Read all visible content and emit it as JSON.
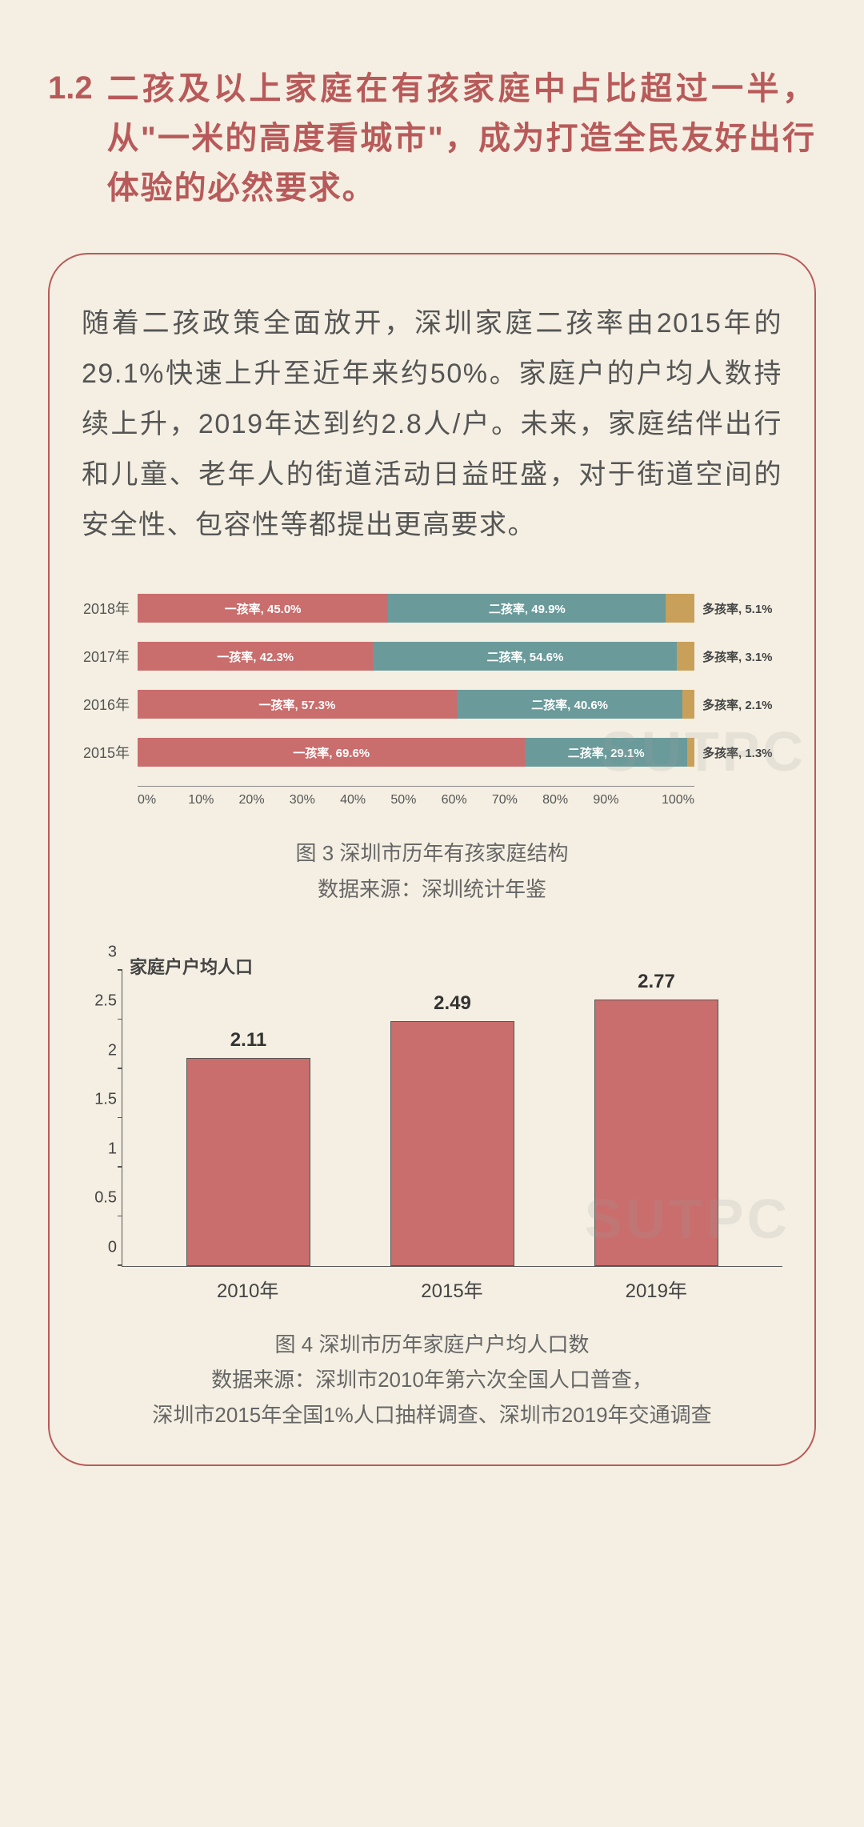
{
  "heading": {
    "number": "1.2",
    "text": "二孩及以上家庭在有孩家庭中占比超过一半，从\"一米的高度看城市\"，成为打造全民友好出行体验的必然要求。",
    "color": "#b85a5a",
    "fontsize": 40
  },
  "paragraph": "随着二孩政策全面放开，深圳家庭二孩率由2015年的29.1%快速上升至近年来约50%。家庭户的户均人数持续上升，2019年达到约2.8人/户。未来，家庭结伴出行和儿童、老年人的街道活动日益旺盛，对于街道空间的安全性、包容性等都提出更高要求。",
  "watermark": "SUTPC",
  "chart1": {
    "type": "stacked-bar-horizontal",
    "caption_title": "图 3  深圳市历年有孩家庭结构",
    "caption_source": "数据来源：深圳统计年鉴",
    "xaxis_ticks": [
      "0%",
      "10%",
      "20%",
      "30%",
      "40%",
      "50%",
      "60%",
      "70%",
      "80%",
      "90%",
      "100%"
    ],
    "series_colors": {
      "one": "#c96d6d",
      "two": "#6a9a9a",
      "multi": "#c9a05a"
    },
    "rows": [
      {
        "year": "2018年",
        "one": {
          "label": "一孩率, 45.0%",
          "val": 45.0
        },
        "two": {
          "label": "二孩率, 49.9%",
          "val": 49.9
        },
        "multi": {
          "label": "多孩率, 5.1%",
          "val": 5.1
        }
      },
      {
        "year": "2017年",
        "one": {
          "label": "一孩率, 42.3%",
          "val": 42.3
        },
        "two": {
          "label": "二孩率, 54.6%",
          "val": 54.6
        },
        "multi": {
          "label": "多孩率, 3.1%",
          "val": 3.1
        }
      },
      {
        "year": "2016年",
        "one": {
          "label": "一孩率, 57.3%",
          "val": 57.3
        },
        "two": {
          "label": "二孩率, 40.6%",
          "val": 40.6
        },
        "multi": {
          "label": "多孩率, 2.1%",
          "val": 2.1
        }
      },
      {
        "year": "2015年",
        "one": {
          "label": "一孩率, 69.6%",
          "val": 69.6
        },
        "two": {
          "label": "二孩率, 29.1%",
          "val": 29.1
        },
        "multi": {
          "label": "多孩率, 1.3%",
          "val": 1.3
        }
      }
    ],
    "label_fontsize": 18,
    "seg_label_fontsize": 15,
    "caption_fontsize": 26
  },
  "chart2": {
    "type": "bar",
    "y_title": "家庭户户均人口",
    "ylim": [
      0,
      3
    ],
    "ytick_step": 0.5,
    "yticks": [
      "0",
      "0.5",
      "1",
      "1.5",
      "2",
      "2.5",
      "3"
    ],
    "bar_color": "#c96d6d",
    "border_color": "#555555",
    "categories": [
      "2010年",
      "2015年",
      "2019年"
    ],
    "values": [
      2.11,
      2.49,
      2.77
    ],
    "value_labels": [
      "2.11",
      "2.49",
      "2.77"
    ],
    "caption_title": "图 4 深圳市历年家庭户户均人口数",
    "caption_source1": "数据来源：深圳市2010年第六次全国人口普查，",
    "caption_source2": "深圳市2015年全国1%人口抽样调查、深圳市2019年交通调查",
    "value_fontsize": 24,
    "axis_fontsize": 20
  },
  "box": {
    "border_color": "#b85a5a",
    "border_radius": 50,
    "background": "#f4efe2"
  }
}
